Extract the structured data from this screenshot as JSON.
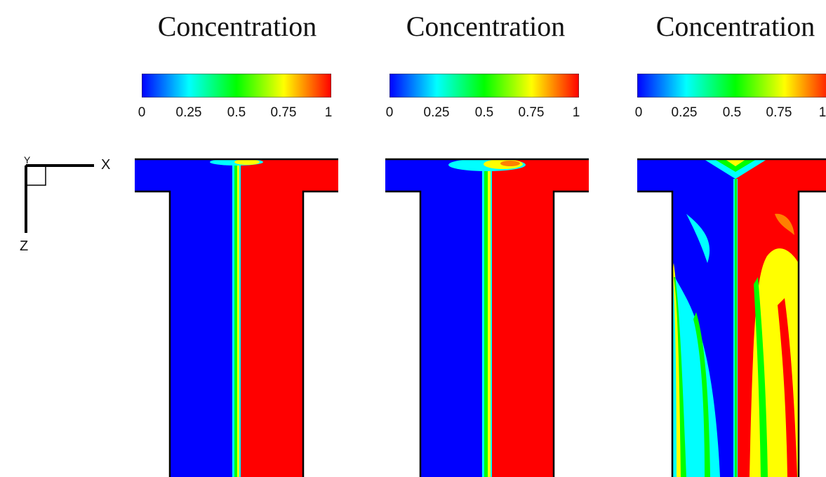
{
  "panels": [
    {
      "title": "Concentration",
      "ticks": [
        "0",
        "0.25",
        "0.5",
        "0.75",
        "1"
      ]
    },
    {
      "title": "Concentration",
      "ticks": [
        "0",
        "0.25",
        "0.5",
        "0.75",
        "1"
      ]
    },
    {
      "title": "Concentration",
      "ticks": [
        "0",
        "0.25",
        "0.5",
        "0.75",
        "1"
      ]
    }
  ],
  "colormap": [
    "#0000ff",
    "#00ffff",
    "#00ff00",
    "#ffff00",
    "#ff0000"
  ],
  "axes": {
    "x_label": "X",
    "z_label": "Z",
    "y_label": "Y"
  }
}
